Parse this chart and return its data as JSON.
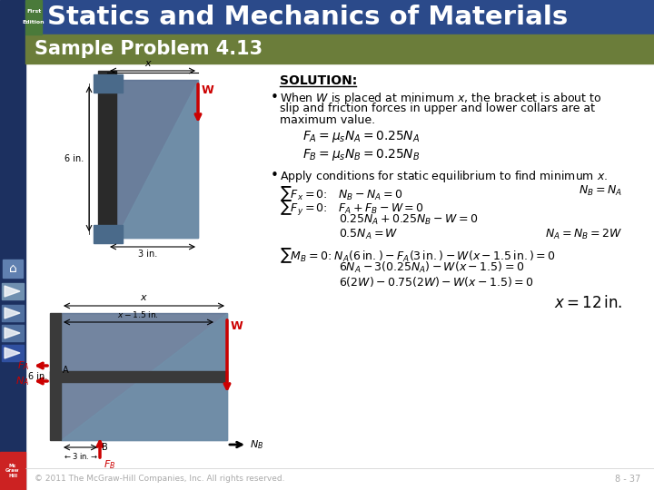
{
  "title": "Statics and Mechanics of Materials",
  "subtitle": "Sample Problem 4.13",
  "footer_text": "© 2011 The McGraw-Hill Companies, Inc. All rights reserved.",
  "page_num": "8 - 37",
  "sidebar_color": "#1c3060",
  "header_color": "#2b4a8a",
  "green_strip_color": "#4a7a3a",
  "subtitle_bar_color": "#6b7d3a",
  "main_bg": "#ffffff",
  "bracket_color": "#5a7090",
  "bracket_light": "#7090aa",
  "pole_color": "#2a2a2a",
  "collar_color": "#4a6a8a",
  "red_color": "#cc0000",
  "mgh_red": "#cc2222",
  "nav_color1": "#6080b0",
  "nav_color2": "#7090b0",
  "nav_color3": "#5070a0",
  "nav_color4": "#3050a0"
}
